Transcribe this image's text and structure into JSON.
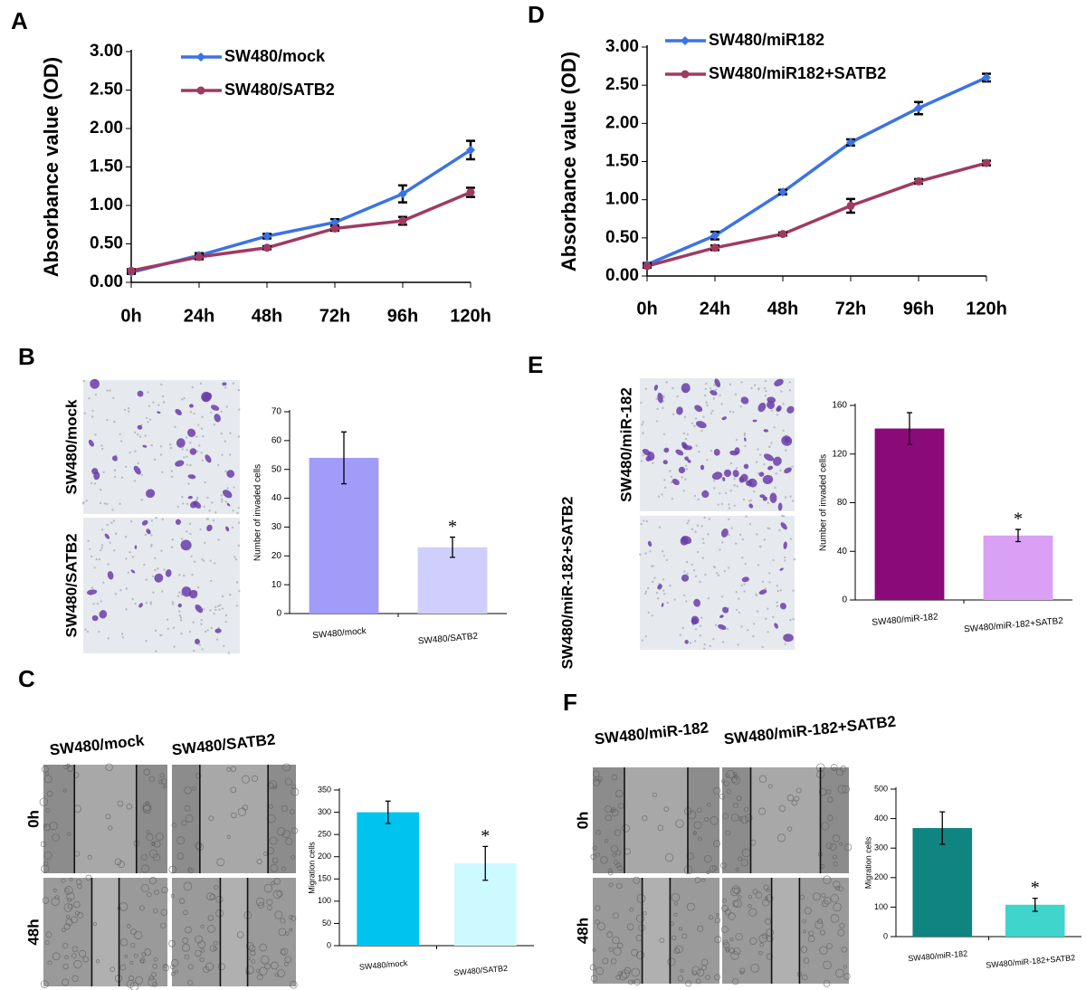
{
  "chart_data": [
    {
      "type": "line",
      "panel": "A",
      "y_label": "Absorbance value (OD)",
      "categories": [
        "0h",
        "24h",
        "48h",
        "72h",
        "96h",
        "120h"
      ],
      "ylim": [
        0,
        3
      ],
      "yticks": [
        {
          "value": 0,
          "label": "0.00"
        },
        {
          "value": 0.5,
          "label": "0.50"
        },
        {
          "value": 1,
          "label": "1.00"
        },
        {
          "value": 1.5,
          "label": "1.50"
        },
        {
          "value": 2,
          "label": "2.00"
        },
        {
          "value": 2.5,
          "label": "2.50"
        },
        {
          "value": 3,
          "label": "3.00"
        }
      ],
      "series": [
        {
          "name": "SW480/mock",
          "color": "#3a73e6",
          "values": [
            0.13,
            0.35,
            0.6,
            0.78,
            1.15,
            1.72
          ],
          "errors": [
            0.02,
            0.03,
            0.03,
            0.04,
            0.11,
            0.12
          ]
        },
        {
          "name": "SW480/SATB2",
          "color": "#a03a62",
          "values": [
            0.15,
            0.33,
            0.45,
            0.7,
            0.8,
            1.17
          ],
          "errors": [
            0.02,
            0.03,
            0.02,
            0.03,
            0.05,
            0.06
          ]
        }
      ]
    },
    {
      "type": "bar",
      "panel": "B",
      "y_label": "Number of invaded cells",
      "image_labels": [
        "SW480/mock",
        "SW480/SATB2"
      ],
      "categories": [
        "SW480/mock",
        "SW480/SATB2"
      ],
      "values": [
        54,
        23
      ],
      "errors": [
        9,
        3.5
      ],
      "colors": [
        "#a09cf8",
        "#d0cefc"
      ],
      "annotation": "*",
      "ylim": [
        0,
        70
      ],
      "yticks": [
        0,
        10,
        20,
        30,
        40,
        50,
        60,
        70
      ]
    },
    {
      "type": "bar",
      "panel": "C",
      "y_label": "Migration cells",
      "column_labels": [
        "SW480/mock",
        "SW480/SATB2"
      ],
      "row_labels": [
        "0h",
        "48h"
      ],
      "categories": [
        "SW480/mock",
        "SW480/SATB2"
      ],
      "values": [
        300,
        185
      ],
      "errors": [
        25,
        38
      ],
      "colors": [
        "#00c4f0",
        "#ccfaff"
      ],
      "annotation": "*",
      "ylim": [
        0,
        350
      ],
      "yticks": [
        0,
        50,
        100,
        150,
        200,
        250,
        300,
        350
      ]
    },
    {
      "type": "line",
      "panel": "D",
      "y_label": "Absorbance value (OD)",
      "categories": [
        "0h",
        "24h",
        "48h",
        "72h",
        "96h",
        "120h"
      ],
      "ylim": [
        0,
        3
      ],
      "yticks": [
        {
          "value": 0,
          "label": "0.00"
        },
        {
          "value": 0.5,
          "label": "0.50"
        },
        {
          "value": 1,
          "label": "1.00"
        },
        {
          "value": 1.5,
          "label": "1.50"
        },
        {
          "value": 2,
          "label": "2.00"
        },
        {
          "value": 2.5,
          "label": "2.50"
        },
        {
          "value": 3,
          "label": "3.00"
        }
      ],
      "series": [
        {
          "name": "SW480/miR182",
          "color": "#3a73e6",
          "values": [
            0.15,
            0.53,
            1.1,
            1.75,
            2.2,
            2.6
          ],
          "errors": [
            0.02,
            0.05,
            0.03,
            0.04,
            0.08,
            0.05
          ]
        },
        {
          "name": "SW480/miR182+SATB2",
          "color": "#a03a62",
          "values": [
            0.13,
            0.37,
            0.55,
            0.92,
            1.24,
            1.48
          ],
          "errors": [
            0.02,
            0.03,
            0.02,
            0.09,
            0.03,
            0.03
          ]
        }
      ]
    },
    {
      "type": "bar",
      "panel": "E",
      "y_label": "Number of invaded cells",
      "image_labels": [
        "SW480/miR-182",
        "SW480/miR-182+SATB2"
      ],
      "categories": [
        "SW480/miR-182",
        "SW480/miR-182+SATB2"
      ],
      "values": [
        141,
        53
      ],
      "errors": [
        13,
        5
      ],
      "colors": [
        "#8b0a7a",
        "#d9a0f6"
      ],
      "annotation": "*",
      "ylim": [
        0,
        160
      ],
      "yticks": [
        0,
        40,
        80,
        120,
        160
      ]
    },
    {
      "type": "bar",
      "panel": "F",
      "y_label": "Migration cells",
      "column_labels": [
        "SW480/miR-182",
        "SW480/miR-182+SATB2"
      ],
      "row_labels": [
        "0h",
        "48h"
      ],
      "categories": [
        "SW480/miR-182",
        "SW480/miR-182+SATB2"
      ],
      "values": [
        368,
        108
      ],
      "errors": [
        55,
        22
      ],
      "colors": [
        "#108480",
        "#3fd4cc"
      ],
      "annotation": "*",
      "ylim": [
        0,
        500
      ],
      "yticks": [
        0,
        100,
        200,
        300,
        400,
        500
      ]
    }
  ]
}
